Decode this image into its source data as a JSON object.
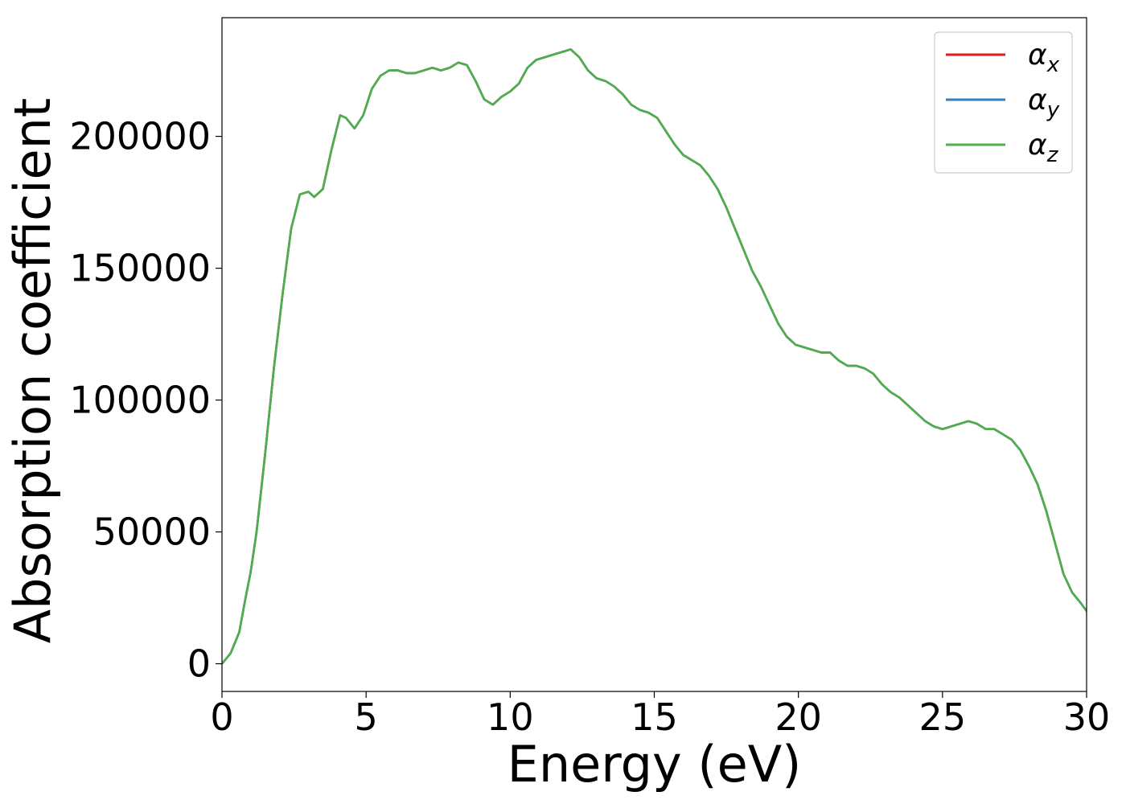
{
  "chart_data": {
    "type": "line",
    "title": "",
    "xlabel": "Energy (eV)",
    "ylabel": "Absorption coefficient",
    "xlim": [
      0,
      30
    ],
    "ylim": [
      -10500,
      245000
    ],
    "x_ticks": [
      0,
      5,
      10,
      15,
      20,
      25,
      30
    ],
    "y_ticks": [
      0,
      50000,
      100000,
      150000,
      200000
    ],
    "grid": false,
    "legend_position": "top-right",
    "series": [
      {
        "name": "αx",
        "label_base": "α",
        "label_sub": "x",
        "color": "#e41a1c",
        "x": [
          0,
          0.3,
          0.6,
          0.8,
          1.0,
          1.2,
          1.5,
          1.8,
          2.1,
          2.4,
          2.7,
          3.0,
          3.2,
          3.5,
          3.8,
          4.1,
          4.3,
          4.6,
          4.9,
          5.2,
          5.5,
          5.8,
          6.1,
          6.4,
          6.7,
          7.0,
          7.3,
          7.6,
          7.9,
          8.2,
          8.5,
          8.8,
          9.1,
          9.4,
          9.7,
          10.0,
          10.3,
          10.6,
          10.9,
          11.2,
          11.5,
          11.8,
          12.1,
          12.4,
          12.7,
          13.0,
          13.3,
          13.6,
          13.9,
          14.2,
          14.5,
          14.8,
          15.1,
          15.4,
          15.7,
          16.0,
          16.3,
          16.6,
          16.9,
          17.2,
          17.5,
          17.8,
          18.1,
          18.4,
          18.7,
          19.0,
          19.3,
          19.6,
          19.9,
          20.2,
          20.5,
          20.8,
          21.1,
          21.4,
          21.7,
          22.0,
          22.3,
          22.6,
          22.9,
          23.2,
          23.5,
          23.8,
          24.1,
          24.4,
          24.7,
          25.0,
          25.3,
          25.6,
          25.9,
          26.2,
          26.5,
          26.8,
          27.1,
          27.4,
          27.7,
          28.0,
          28.3,
          28.6,
          28.9,
          29.2,
          29.5,
          29.8,
          30.0
        ],
        "y": [
          0,
          4000,
          12000,
          24000,
          35000,
          50000,
          80000,
          112000,
          140000,
          165000,
          178000,
          179000,
          177000,
          180000,
          195000,
          208000,
          207000,
          203000,
          208000,
          218000,
          223000,
          225000,
          225000,
          224000,
          224000,
          225000,
          226000,
          225000,
          226000,
          228000,
          227000,
          221000,
          214000,
          212000,
          215000,
          217000,
          220000,
          226000,
          229000,
          230000,
          231000,
          232000,
          233000,
          230000,
          225000,
          222000,
          221000,
          219000,
          216000,
          212000,
          210000,
          209000,
          207000,
          202000,
          197000,
          193000,
          191000,
          189000,
          185000,
          180000,
          173000,
          165000,
          157000,
          149000,
          143000,
          136000,
          129000,
          124000,
          121000,
          120000,
          119000,
          118000,
          118000,
          115000,
          113000,
          113000,
          112000,
          110000,
          106000,
          103000,
          101000,
          98000,
          95000,
          92000,
          90000,
          89000,
          90000,
          91000,
          92000,
          91000,
          89000,
          89000,
          87000,
          85000,
          81000,
          75000,
          68000,
          58000,
          46000,
          34000,
          27000,
          23000,
          20000
        ]
      },
      {
        "name": "αy",
        "label_base": "α",
        "label_sub": "y",
        "color": "#377eb8",
        "x": [
          0,
          0.3,
          0.6,
          0.8,
          1.0,
          1.2,
          1.5,
          1.8,
          2.1,
          2.4,
          2.7,
          3.0,
          3.2,
          3.5,
          3.8,
          4.1,
          4.3,
          4.6,
          4.9,
          5.2,
          5.5,
          5.8,
          6.1,
          6.4,
          6.7,
          7.0,
          7.3,
          7.6,
          7.9,
          8.2,
          8.5,
          8.8,
          9.1,
          9.4,
          9.7,
          10.0,
          10.3,
          10.6,
          10.9,
          11.2,
          11.5,
          11.8,
          12.1,
          12.4,
          12.7,
          13.0,
          13.3,
          13.6,
          13.9,
          14.2,
          14.5,
          14.8,
          15.1,
          15.4,
          15.7,
          16.0,
          16.3,
          16.6,
          16.9,
          17.2,
          17.5,
          17.8,
          18.1,
          18.4,
          18.7,
          19.0,
          19.3,
          19.6,
          19.9,
          20.2,
          20.5,
          20.8,
          21.1,
          21.4,
          21.7,
          22.0,
          22.3,
          22.6,
          22.9,
          23.2,
          23.5,
          23.8,
          24.1,
          24.4,
          24.7,
          25.0,
          25.3,
          25.6,
          25.9,
          26.2,
          26.5,
          26.8,
          27.1,
          27.4,
          27.7,
          28.0,
          28.3,
          28.6,
          28.9,
          29.2,
          29.5,
          29.8,
          30.0
        ],
        "y": [
          0,
          4000,
          12000,
          24000,
          35000,
          50000,
          80000,
          112000,
          140000,
          165000,
          178000,
          179000,
          177000,
          180000,
          195000,
          208000,
          207000,
          203000,
          208000,
          218000,
          223000,
          225000,
          225000,
          224000,
          224000,
          225000,
          226000,
          225000,
          226000,
          228000,
          227000,
          221000,
          214000,
          212000,
          215000,
          217000,
          220000,
          226000,
          229000,
          230000,
          231000,
          232000,
          233000,
          230000,
          225000,
          222000,
          221000,
          219000,
          216000,
          212000,
          210000,
          209000,
          207000,
          202000,
          197000,
          193000,
          191000,
          189000,
          185000,
          180000,
          173000,
          165000,
          157000,
          149000,
          143000,
          136000,
          129000,
          124000,
          121000,
          120000,
          119000,
          118000,
          118000,
          115000,
          113000,
          113000,
          112000,
          110000,
          106000,
          103000,
          101000,
          98000,
          95000,
          92000,
          90000,
          89000,
          90000,
          91000,
          92000,
          91000,
          89000,
          89000,
          87000,
          85000,
          81000,
          75000,
          68000,
          58000,
          46000,
          34000,
          27000,
          23000,
          20000
        ]
      },
      {
        "name": "αz",
        "label_base": "α",
        "label_sub": "z",
        "color": "#4daf4a",
        "x": [
          0,
          0.3,
          0.6,
          0.8,
          1.0,
          1.2,
          1.5,
          1.8,
          2.1,
          2.4,
          2.7,
          3.0,
          3.2,
          3.5,
          3.8,
          4.1,
          4.3,
          4.6,
          4.9,
          5.2,
          5.5,
          5.8,
          6.1,
          6.4,
          6.7,
          7.0,
          7.3,
          7.6,
          7.9,
          8.2,
          8.5,
          8.8,
          9.1,
          9.4,
          9.7,
          10.0,
          10.3,
          10.6,
          10.9,
          11.2,
          11.5,
          11.8,
          12.1,
          12.4,
          12.7,
          13.0,
          13.3,
          13.6,
          13.9,
          14.2,
          14.5,
          14.8,
          15.1,
          15.4,
          15.7,
          16.0,
          16.3,
          16.6,
          16.9,
          17.2,
          17.5,
          17.8,
          18.1,
          18.4,
          18.7,
          19.0,
          19.3,
          19.6,
          19.9,
          20.2,
          20.5,
          20.8,
          21.1,
          21.4,
          21.7,
          22.0,
          22.3,
          22.6,
          22.9,
          23.2,
          23.5,
          23.8,
          24.1,
          24.4,
          24.7,
          25.0,
          25.3,
          25.6,
          25.9,
          26.2,
          26.5,
          26.8,
          27.1,
          27.4,
          27.7,
          28.0,
          28.3,
          28.6,
          28.9,
          29.2,
          29.5,
          29.8,
          30.0
        ],
        "y": [
          0,
          4000,
          12000,
          24000,
          35000,
          50000,
          80000,
          112000,
          140000,
          165000,
          178000,
          179000,
          177000,
          180000,
          195000,
          208000,
          207000,
          203000,
          208000,
          218000,
          223000,
          225000,
          225000,
          224000,
          224000,
          225000,
          226000,
          225000,
          226000,
          228000,
          227000,
          221000,
          214000,
          212000,
          215000,
          217000,
          220000,
          226000,
          229000,
          230000,
          231000,
          232000,
          233000,
          230000,
          225000,
          222000,
          221000,
          219000,
          216000,
          212000,
          210000,
          209000,
          207000,
          202000,
          197000,
          193000,
          191000,
          189000,
          185000,
          180000,
          173000,
          165000,
          157000,
          149000,
          143000,
          136000,
          129000,
          124000,
          121000,
          120000,
          119000,
          118000,
          118000,
          115000,
          113000,
          113000,
          112000,
          110000,
          106000,
          103000,
          101000,
          98000,
          95000,
          92000,
          90000,
          89000,
          90000,
          91000,
          92000,
          91000,
          89000,
          89000,
          87000,
          85000,
          81000,
          75000,
          68000,
          58000,
          46000,
          34000,
          27000,
          23000,
          20000
        ]
      }
    ]
  }
}
